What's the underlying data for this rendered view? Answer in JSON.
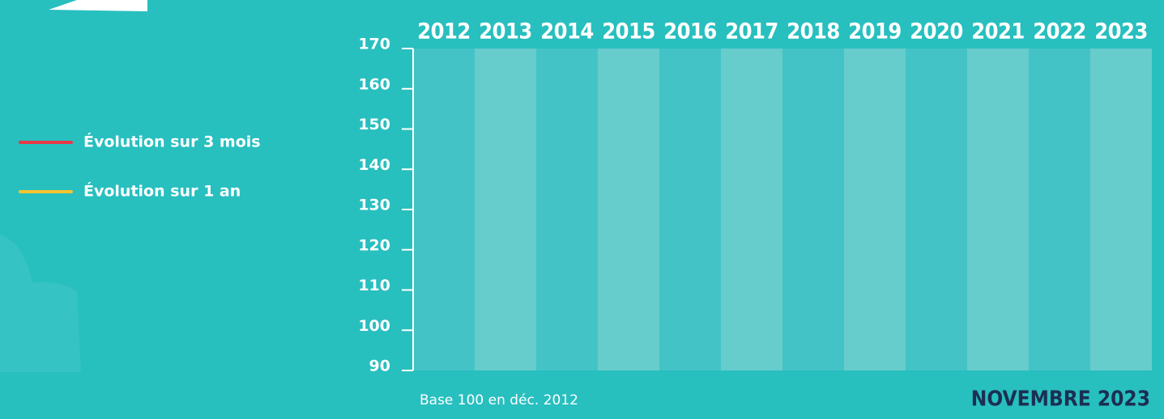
{
  "chart_data": {
    "type": "line",
    "categories": [
      "2012",
      "2013",
      "2014",
      "2015",
      "2016",
      "2017",
      "2018",
      "2019",
      "2020",
      "2021",
      "2022",
      "2023"
    ],
    "series": [
      {
        "name": "Évolution sur 3 mois",
        "color": "#e63946",
        "values": [
          null,
          null,
          null,
          null,
          null,
          null,
          null,
          null,
          null,
          null,
          null,
          null
        ]
      },
      {
        "name": "Évolution sur 1 an",
        "color": "#f4c430",
        "values": [
          null,
          null,
          null,
          null,
          null,
          null,
          null,
          null,
          null,
          null,
          null,
          null
        ]
      }
    ],
    "ylim": [
      90,
      170
    ],
    "yticks": [
      90,
      100,
      110,
      120,
      130,
      140,
      150,
      160,
      170
    ],
    "band_colors": [
      "#44c3c6",
      "#67cccc"
    ],
    "note": "Base 100 en déc. 2012",
    "date": "NOVEMBRE 2023"
  }
}
